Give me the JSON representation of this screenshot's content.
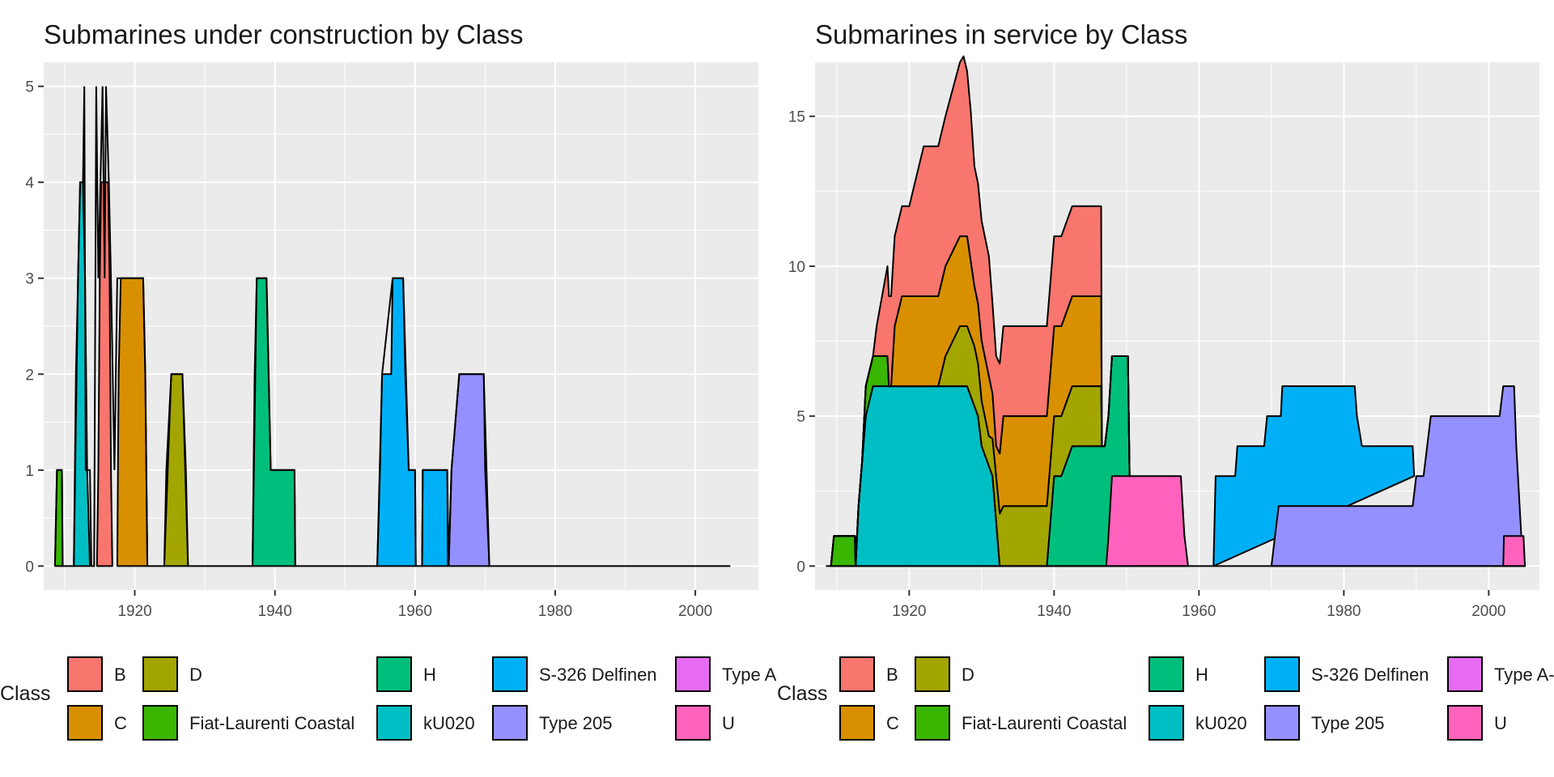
{
  "chart_data": [
    {
      "type": "area",
      "title": "Submarines under construction by Class",
      "xlabel": "",
      "ylabel": "",
      "xlim": [
        1907,
        2009
      ],
      "ylim": [
        -0.25,
        5.25
      ],
      "x_ticks": [
        1920,
        1940,
        1960,
        1980,
        2000
      ],
      "y_ticks": [
        0,
        1,
        2,
        3,
        4,
        5
      ],
      "grid": true,
      "legend": {
        "title": "Class",
        "placement": "bottom"
      },
      "series": [
        {
          "name": "B",
          "color": "#F8766D",
          "points": [
            [
              1914.6,
              0
            ],
            [
              1914.8,
              1
            ],
            [
              1915,
              3
            ],
            [
              1915.2,
              4
            ],
            [
              1916.2,
              4
            ],
            [
              1916.4,
              3
            ],
            [
              1916.6,
              1
            ],
            [
              1916.8,
              0
            ]
          ]
        },
        {
          "name": "C",
          "color": "#D89000",
          "points": [
            [
              1917.5,
              0
            ],
            [
              1917.7,
              2
            ],
            [
              1918,
              3
            ],
            [
              1921.2,
              3
            ],
            [
              1921.5,
              2
            ],
            [
              1921.8,
              0
            ]
          ]
        },
        {
          "name": "D",
          "color": "#A3A500",
          "points": [
            [
              1924.2,
              0
            ],
            [
              1924.5,
              1
            ],
            [
              1925.2,
              2
            ],
            [
              1926.8,
              2
            ],
            [
              1927.3,
              1
            ],
            [
              1927.6,
              0
            ]
          ]
        },
        {
          "name": "Fiat-Laurenti Coastal",
          "color": "#39B600",
          "points": [
            [
              1908.6,
              0
            ],
            [
              1908.9,
              1
            ],
            [
              1909.6,
              1
            ],
            [
              1909.7,
              0
            ]
          ]
        },
        {
          "name": "H",
          "color": "#00BF7D",
          "points": [
            [
              1936.8,
              0
            ],
            [
              1937.1,
              2
            ],
            [
              1937.4,
              3
            ],
            [
              1938.8,
              3
            ],
            [
              1939.1,
              2
            ],
            [
              1939.4,
              1
            ],
            [
              1942.8,
              1
            ],
            [
              1942.9,
              0
            ]
          ]
        },
        {
          "name": "kU020",
          "color": "#00BFC4",
          "points": [
            [
              1911.3,
              0
            ],
            [
              1911.6,
              2
            ],
            [
              1911.9,
              3
            ],
            [
              1912.2,
              4
            ],
            [
              1912.6,
              4
            ],
            [
              1912.9,
              3
            ],
            [
              1913.2,
              1
            ],
            [
              1913.6,
              0
            ]
          ]
        },
        {
          "name": "S-326 Delfinen",
          "color": "#00B0F6",
          "points": [
            [
              1954.6,
              0
            ],
            [
              1955,
              1
            ],
            [
              1955.3,
              2
            ],
            [
              1956.6,
              2
            ],
            [
              1956.8,
              3
            ],
            [
              1958.3,
              3
            ],
            [
              1958.6,
              2
            ],
            [
              1959.1,
              1
            ],
            [
              1960,
              1
            ],
            [
              1960.1,
              0
            ]
          ]
        },
        {
          "name": "S-326 Delfinen",
          "color": "#00B0F6",
          "points": [
            [
              1961,
              0
            ],
            [
              1961.1,
              1
            ],
            [
              1964.6,
              1
            ],
            [
              1964.7,
              0
            ]
          ]
        },
        {
          "name": "Type 205",
          "color": "#9590FF",
          "points": [
            [
              1964.8,
              0
            ],
            [
              1965.2,
              1
            ],
            [
              1966.3,
              2
            ],
            [
              1969.8,
              2
            ],
            [
              1970,
              1
            ],
            [
              1970.6,
              0
            ]
          ]
        },
        {
          "name": "Type A-",
          "color": "#E76BF3",
          "points": []
        },
        {
          "name": "U",
          "color": "#FF62BC",
          "points": []
        }
      ],
      "overlay_line": [
        [
          1908.6,
          0
        ],
        [
          1908.9,
          1
        ],
        [
          1909.6,
          1
        ],
        [
          1909.7,
          0
        ],
        [
          1911.3,
          0
        ],
        [
          1911.9,
          3
        ],
        [
          1912.2,
          4
        ],
        [
          1912.6,
          4
        ],
        [
          1912.8,
          5
        ],
        [
          1913,
          1
        ],
        [
          1913.6,
          1
        ],
        [
          1913.8,
          0
        ],
        [
          1914.2,
          0
        ],
        [
          1914.5,
          5
        ],
        [
          1914.8,
          3
        ],
        [
          1915.4,
          5
        ],
        [
          1915.7,
          3
        ],
        [
          1915.9,
          5
        ],
        [
          1916.3,
          4
        ],
        [
          1916.6,
          3
        ],
        [
          1917.1,
          1
        ],
        [
          1917.5,
          3
        ],
        [
          1918.6,
          3
        ],
        [
          1921.2,
          3
        ],
        [
          1921.5,
          2
        ],
        [
          1921.8,
          0
        ],
        [
          1924.2,
          0
        ],
        [
          1925.2,
          2
        ],
        [
          1926.8,
          2
        ],
        [
          1927.6,
          0
        ],
        [
          1936.8,
          0
        ],
        [
          1937.4,
          3
        ],
        [
          1938.8,
          3
        ],
        [
          1939.4,
          1
        ],
        [
          1942.8,
          1
        ],
        [
          1942.9,
          0
        ],
        [
          1954.6,
          0
        ],
        [
          1955.3,
          2
        ],
        [
          1956.8,
          3
        ],
        [
          1958.3,
          3
        ],
        [
          1959.1,
          1
        ],
        [
          1960,
          1
        ],
        [
          1960.1,
          0
        ],
        [
          1961,
          0
        ],
        [
          1961.1,
          1
        ],
        [
          1964.6,
          1
        ],
        [
          1964.8,
          0
        ],
        [
          1965.2,
          1
        ],
        [
          1966.3,
          2
        ],
        [
          1969.8,
          2
        ],
        [
          1970.6,
          0
        ],
        [
          2005,
          0
        ]
      ]
    },
    {
      "type": "area",
      "title": "Submarines in service by Class",
      "xlabel": "",
      "ylabel": "",
      "xlim": [
        1907,
        2007
      ],
      "ylim": [
        -0.8,
        16.8
      ],
      "x_ticks": [
        1920,
        1940,
        1960,
        1980,
        2000
      ],
      "y_ticks": [
        0,
        5,
        10,
        15
      ],
      "grid": true,
      "legend": {
        "title": "Class",
        "placement": "bottom"
      },
      "stacked": true,
      "stack_order_bottom_to_top": [
        "kU020",
        "Fiat-Laurenti Coastal",
        "H",
        "D",
        "C",
        "B"
      ],
      "series": [
        {
          "name": "B",
          "color": "#F8766D",
          "points": [
            [
              1915,
              0
            ],
            [
              1915.5,
              1
            ],
            [
              1917,
              3
            ],
            [
              1918,
              3
            ],
            [
              1920,
              3
            ],
            [
              1921,
              4
            ],
            [
              1922,
              5
            ],
            [
              1925,
              5
            ],
            [
              1927.5,
              6
            ],
            [
              1928.5,
              5
            ],
            [
              1929,
              4
            ],
            [
              1931,
              4
            ],
            [
              1931.5,
              3
            ],
            [
              1932,
              3
            ],
            [
              1941,
              3
            ],
            [
              1943,
              3
            ],
            [
              1944.5,
              3
            ],
            [
              1946.5,
              3
            ],
            [
              1946.6,
              0
            ]
          ]
        },
        {
          "name": "C",
          "color": "#D89000",
          "points": [
            [
              1917.5,
              0
            ],
            [
              1918,
              2
            ],
            [
              1919,
              3
            ],
            [
              1922,
              3
            ],
            [
              1927,
              3
            ],
            [
              1928,
              3
            ],
            [
              1929,
              2
            ],
            [
              1931,
              2
            ],
            [
              1932,
              1
            ],
            [
              1933,
              3
            ],
            [
              1939,
              3
            ],
            [
              1940,
              3
            ],
            [
              1946.5,
              3
            ],
            [
              1946.6,
              0
            ]
          ]
        },
        {
          "name": "D",
          "color": "#A3A500",
          "points": [
            [
              1924,
              0
            ],
            [
              1925,
              1
            ],
            [
              1927,
              2
            ],
            [
              1928,
              2
            ],
            [
              1929,
              2
            ],
            [
              1931,
              1
            ],
            [
              1933,
              2
            ],
            [
              1936,
              2
            ],
            [
              1939,
              2
            ],
            [
              1940,
              2
            ],
            [
              1943,
              2
            ],
            [
              1944.5,
              2
            ],
            [
              1946.5,
              2
            ],
            [
              1946.6,
              0
            ]
          ]
        },
        {
          "name": "Fiat-Laurenti Coastal",
          "color": "#39B600",
          "points": [
            [
              1909.2,
              0
            ],
            [
              1909.6,
              1
            ],
            [
              1912.5,
              1
            ],
            [
              1912.6,
              0
            ],
            [
              1913.5,
              0
            ],
            [
              1914,
              1
            ],
            [
              1915.5,
              1
            ],
            [
              1917,
              1
            ],
            [
              1917.2,
              0
            ]
          ]
        },
        {
          "name": "H",
          "color": "#00BF7D",
          "points": [
            [
              1939,
              0
            ],
            [
              1940,
              3
            ],
            [
              1941,
              3
            ],
            [
              1942.5,
              4
            ],
            [
              1947,
              4
            ],
            [
              1947.5,
              5
            ],
            [
              1948,
              7
            ],
            [
              1950.2,
              7
            ],
            [
              1950.6,
              0
            ]
          ]
        },
        {
          "name": "kU020",
          "color": "#00BFC4",
          "points": [
            [
              1912.6,
              0
            ],
            [
              1913,
              2
            ],
            [
              1914,
              5
            ],
            [
              1915,
              6
            ],
            [
              1928,
              6
            ],
            [
              1929.5,
              5
            ],
            [
              1930,
              4
            ],
            [
              1931.5,
              3
            ],
            [
              1932.5,
              0
            ]
          ]
        },
        {
          "name": "S-326 Delfinen",
          "color": "#00B0F6",
          "points": [
            [
              1962,
              0
            ],
            [
              1962.3,
              3
            ],
            [
              1965,
              3
            ],
            [
              1965.3,
              4
            ],
            [
              1969,
              4
            ],
            [
              1969.4,
              5
            ],
            [
              1971.3,
              5
            ],
            [
              1971.5,
              6
            ],
            [
              1981.5,
              6
            ],
            [
              1981.8,
              5
            ],
            [
              1982.5,
              4
            ],
            [
              1989.5,
              4
            ],
            [
              1989.7,
              3
            ]
          ]
        },
        {
          "name": "Type 205",
          "color": "#9590FF",
          "points": [
            [
              1970,
              0
            ],
            [
              1970.5,
              1
            ],
            [
              1971,
              2
            ],
            [
              1989.5,
              2
            ],
            [
              1990,
              3
            ],
            [
              1991,
              3
            ],
            [
              1991.5,
              4
            ],
            [
              1992,
              5
            ],
            [
              2001.5,
              5
            ],
            [
              2002,
              6
            ],
            [
              2003.5,
              6
            ],
            [
              2003.8,
              4
            ],
            [
              2004.5,
              1
            ],
            [
              2005,
              0
            ]
          ]
        },
        {
          "name": "Type A-",
          "color": "#E76BF3",
          "points": []
        },
        {
          "name": "U",
          "color": "#FF62BC",
          "points": [
            [
              1947.2,
              0
            ],
            [
              1947.5,
              1
            ],
            [
              1948,
              3
            ],
            [
              1957.5,
              3
            ],
            [
              1958,
              1
            ],
            [
              1958.5,
              0
            ]
          ]
        },
        {
          "name": "U",
          "color": "#FF62BC",
          "points": [
            [
              2002,
              0
            ],
            [
              2002.1,
              1
            ],
            [
              2004.8,
              1
            ],
            [
              2005,
              0
            ]
          ]
        }
      ]
    }
  ],
  "legend_entries": [
    {
      "label": "B",
      "color": "#F8766D"
    },
    {
      "label": "C",
      "color": "#D89000"
    },
    {
      "label": "D",
      "color": "#A3A500"
    },
    {
      "label": "Fiat-Laurenti Coastal",
      "color": "#39B600"
    },
    {
      "label": "H",
      "color": "#00BF7D"
    },
    {
      "label": "kU020",
      "color": "#00BFC4"
    },
    {
      "label": "S-326 Delfinen",
      "color": "#00B0F6"
    },
    {
      "label": "Type 205",
      "color": "#9590FF"
    },
    {
      "label": "Type A-",
      "color": "#E76BF3"
    },
    {
      "label": "U",
      "color": "#FF62BC"
    }
  ],
  "legend_title": "Class"
}
